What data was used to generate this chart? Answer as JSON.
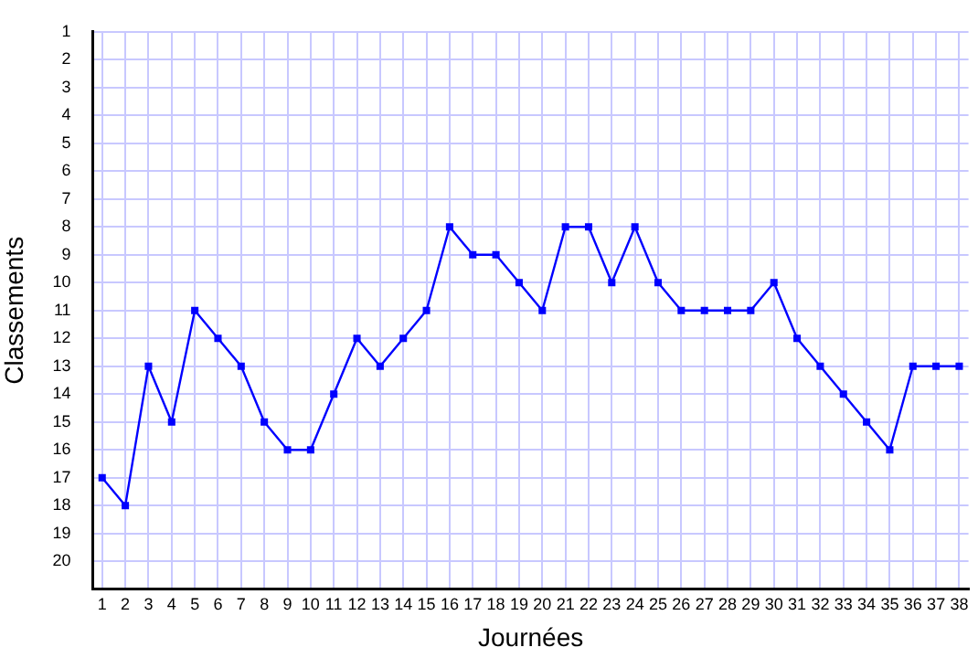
{
  "chart_data": {
    "type": "line",
    "xlabel": "Journées",
    "ylabel": "Classements",
    "x": [
      1,
      2,
      3,
      4,
      5,
      6,
      7,
      8,
      9,
      10,
      11,
      12,
      13,
      14,
      15,
      16,
      17,
      18,
      19,
      20,
      21,
      22,
      23,
      24,
      25,
      26,
      27,
      28,
      29,
      30,
      31,
      32,
      33,
      34,
      35,
      36,
      37,
      38
    ],
    "series": [
      {
        "color": "#0000ff",
        "values": [
          17,
          18,
          13,
          15,
          11,
          12,
          13,
          15,
          16,
          16,
          14,
          12,
          13,
          12,
          11,
          8,
          9,
          9,
          10,
          11,
          8,
          8,
          10,
          8,
          10,
          11,
          11,
          11,
          11,
          10,
          12,
          13,
          14,
          15,
          16,
          13,
          13,
          13
        ]
      }
    ],
    "xlim": [
      0.6,
      38.4
    ],
    "xticks": [
      1,
      2,
      3,
      4,
      5,
      6,
      7,
      8,
      9,
      10,
      11,
      12,
      13,
      14,
      15,
      16,
      17,
      18,
      19,
      20,
      21,
      22,
      23,
      24,
      25,
      26,
      27,
      28,
      29,
      30,
      31,
      32,
      33,
      34,
      35,
      36,
      37,
      38
    ],
    "ylim": [
      21,
      1
    ],
    "yticks": [
      1,
      2,
      3,
      4,
      5,
      6,
      7,
      8,
      9,
      10,
      11,
      12,
      13,
      14,
      15,
      16,
      17,
      18,
      19,
      20
    ],
    "grid": true,
    "legend": false,
    "marker": "square",
    "line_style": "solid"
  }
}
